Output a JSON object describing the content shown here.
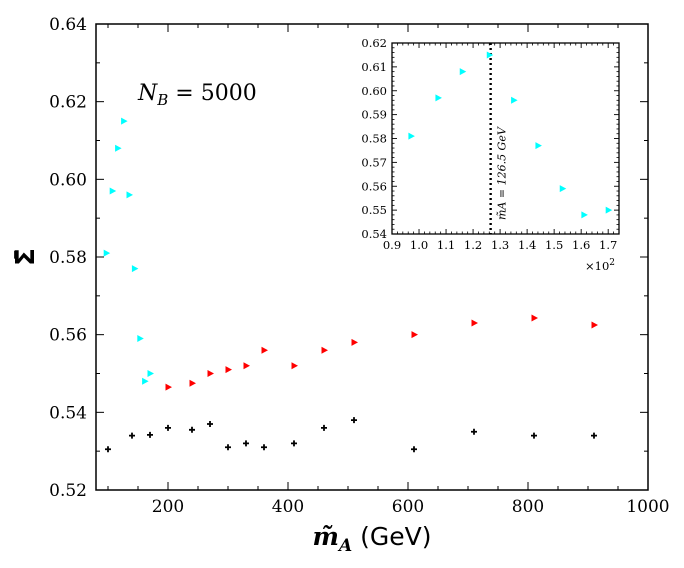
{
  "chart_data": {
    "type": "scatter",
    "xlabel_symbol": "m̃",
    "xlabel_sub": "A",
    "xlabel_unit": "(GeV)",
    "ylabel": "Σ̄",
    "annotation_lhs": "N",
    "annotation_sub": "B",
    "annotation_rhs": " = 5000",
    "xlim": [
      80,
      1000
    ],
    "ylim": [
      0.52,
      0.64
    ],
    "xticks": [
      200,
      400,
      600,
      800,
      1000
    ],
    "yticks": [
      0.52,
      0.54,
      0.56,
      0.58,
      0.6,
      0.62,
      0.64
    ],
    "ytick_labels": [
      "0.52",
      "0.54",
      "0.56",
      "0.58",
      "0.60",
      "0.62",
      "0.64"
    ],
    "series": [
      {
        "name": "cyan",
        "color": "#00ffff",
        "marker": "triangle-right",
        "x": [
          97,
          107,
          116,
          126,
          135,
          144,
          153,
          161,
          170
        ],
        "y": [
          0.581,
          0.597,
          0.608,
          0.615,
          0.596,
          0.577,
          0.559,
          0.548,
          0.55
        ]
      },
      {
        "name": "red",
        "color": "#ff0000",
        "marker": "triangle-right",
        "x": [
          200,
          240,
          270,
          300,
          330,
          360,
          410,
          460,
          510,
          610,
          710,
          810,
          910
        ],
        "y": [
          0.5465,
          0.5475,
          0.55,
          0.551,
          0.552,
          0.556,
          0.552,
          0.556,
          0.558,
          0.56,
          0.563,
          0.5643,
          0.5625
        ]
      },
      {
        "name": "black",
        "color": "#000000",
        "marker": "plus",
        "x": [
          100,
          140,
          170,
          200,
          240,
          270,
          300,
          330,
          360,
          410,
          460,
          510,
          610,
          710,
          810,
          910
        ],
        "y": [
          0.5305,
          0.534,
          0.5342,
          0.536,
          0.5355,
          0.537,
          0.531,
          0.532,
          0.531,
          0.532,
          0.536,
          0.538,
          0.5305,
          0.535,
          0.534,
          0.534
        ]
      }
    ],
    "inset": {
      "xlim": [
        0.9,
        1.74
      ],
      "ylim": [
        0.54,
        0.62
      ],
      "xticks": [
        0.9,
        1.0,
        1.1,
        1.2,
        1.3,
        1.4,
        1.5,
        1.6,
        1.7
      ],
      "xtick_labels": [
        "0.9",
        "1.0",
        "1.1",
        "1.2",
        "1.3",
        "1.4",
        "1.5",
        "1.6",
        "1.7"
      ],
      "yticks": [
        0.54,
        0.55,
        0.56,
        0.57,
        0.58,
        0.59,
        0.6,
        0.61,
        0.62
      ],
      "ytick_labels": [
        "0.54",
        "0.55",
        "0.56",
        "0.57",
        "0.58",
        "0.59",
        "0.60",
        "0.61",
        "0.62"
      ],
      "x_multiplier_base": "×10",
      "x_multiplier_exp": "2",
      "vline_x": 1.265,
      "vline_label": "m̃A = 126.5 GeV",
      "series": {
        "name": "cyan",
        "color": "#00ffff",
        "x": [
          0.97,
          1.07,
          1.16,
          1.26,
          1.35,
          1.44,
          1.53,
          1.61,
          1.7
        ],
        "y": [
          0.581,
          0.597,
          0.608,
          0.615,
          0.596,
          0.577,
          0.559,
          0.548,
          0.55
        ]
      }
    }
  }
}
